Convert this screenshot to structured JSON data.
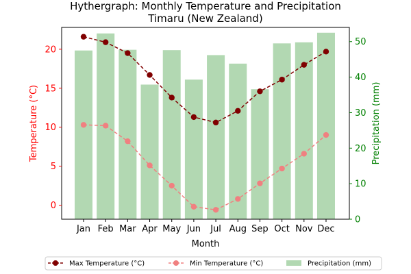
{
  "chart_data": {
    "type": "bar+line",
    "title": "Hythergraph: Monthly Temperature and Precipitation",
    "subtitle": "Timaru (New Zealand)",
    "xlabel": "Month",
    "ylabel_left": "Temperature (°C)",
    "ylabel_right": "Precipitation (mm)",
    "categories": [
      "Jan",
      "Feb",
      "Mar",
      "Apr",
      "May",
      "Jun",
      "Jul",
      "Aug",
      "Sep",
      "Oct",
      "Nov",
      "Dec"
    ],
    "ylim_left": [
      -1.8,
      22.8
    ],
    "ylim_right": [
      0,
      54
    ],
    "yticks_left": [
      0,
      5,
      10,
      15,
      20
    ],
    "yticks_right": [
      0,
      10,
      20,
      30,
      40,
      50
    ],
    "legend_position": "bottom-center",
    "colors": {
      "max_temp": "#800000",
      "min_temp": "#f08080",
      "precip": "#b2d8b2",
      "left_axis": "#ff0000",
      "right_axis": "#008000"
    },
    "series": [
      {
        "name": "Max Temperature (°C)",
        "kind": "line",
        "axis": "left",
        "values": [
          21.6,
          20.9,
          19.5,
          16.7,
          13.8,
          11.3,
          10.6,
          12.1,
          14.6,
          16.1,
          18.0,
          19.7
        ]
      },
      {
        "name": "Min Temperature (°C)",
        "kind": "line",
        "axis": "left",
        "values": [
          10.3,
          10.2,
          8.2,
          5.1,
          2.5,
          -0.2,
          -0.6,
          0.8,
          2.8,
          4.7,
          6.6,
          9.0
        ]
      },
      {
        "name": "Precipitation (mm)",
        "kind": "bar",
        "axis": "right",
        "values": [
          47.5,
          52.3,
          47.7,
          37.9,
          47.6,
          39.3,
          46.2,
          43.8,
          36.6,
          49.5,
          49.8,
          52.5
        ]
      }
    ]
  }
}
